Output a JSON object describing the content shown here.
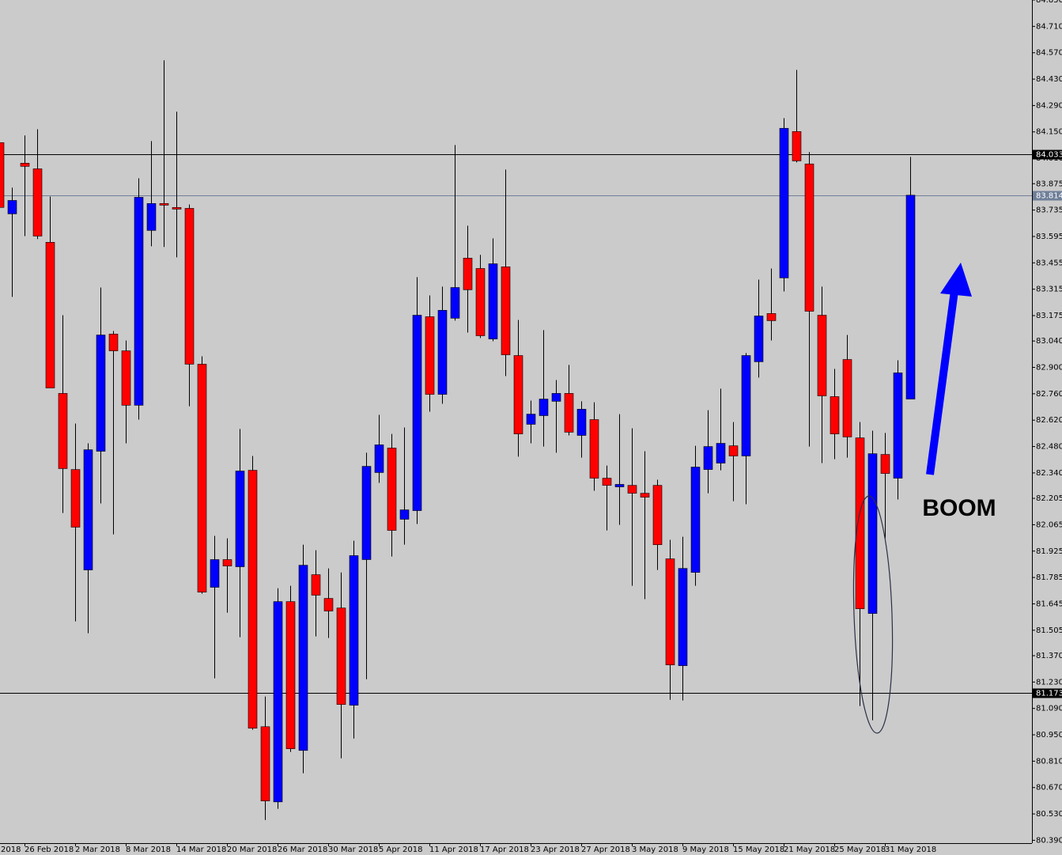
{
  "chart_data": {
    "type": "candlestick",
    "up_color": "#0000ff",
    "down_color": "#ff0000",
    "wick_color": "#000000",
    "ylim": [
      80.375,
      84.85
    ],
    "yticks": [
      {
        "value": 84.85,
        "label": "84.850"
      },
      {
        "value": 84.71,
        "label": "84.710"
      },
      {
        "value": 84.57,
        "label": "84.570"
      },
      {
        "value": 84.43,
        "label": "84.430"
      },
      {
        "value": 84.29,
        "label": "84.290"
      },
      {
        "value": 84.15,
        "label": "84.150"
      },
      {
        "value": 84.01,
        "label": "84.010"
      },
      83.875,
      83.735,
      83.595,
      83.455,
      83.315,
      83.175,
      {
        "value": 83.04,
        "label": "83.040"
      },
      {
        "value": 82.9,
        "label": "82.900"
      },
      {
        "value": 82.76,
        "label": "82.760"
      },
      {
        "value": 82.62,
        "label": "82.620"
      },
      {
        "value": 82.48,
        "label": "82.480"
      },
      {
        "value": 82.34,
        "label": "82.340"
      },
      82.205,
      82.065,
      81.925,
      81.785,
      81.645,
      81.505,
      {
        "value": 81.37,
        "label": "81.370"
      },
      {
        "value": 81.23,
        "label": "81.230"
      },
      {
        "value": 81.09,
        "label": "81.090"
      },
      {
        "value": 80.95,
        "label": "80.950"
      },
      {
        "value": 80.81,
        "label": "80.810"
      },
      {
        "value": 80.67,
        "label": "80.670"
      },
      {
        "value": 80.53,
        "label": "80.530"
      },
      {
        "value": 80.39,
        "label": "80.390"
      }
    ],
    "hlines": [
      {
        "value": 84.033,
        "color": "#000000"
      },
      {
        "value": 83.814,
        "color": "#6f7f99"
      },
      {
        "value": 81.173,
        "color": "#000000"
      }
    ],
    "annotation": "BOOM",
    "categories": [
      "2018",
      null,
      "26 Feb 2018",
      null,
      null,
      null,
      "2 Mar 2018",
      null,
      null,
      null,
      "8 Mar 2018",
      null,
      null,
      null,
      "14 Mar 2018",
      null,
      null,
      null,
      "20 Mar 2018",
      null,
      null,
      null,
      "26 Mar 2018",
      null,
      null,
      null,
      "30 Mar 2018",
      null,
      null,
      null,
      "5 Apr 2018",
      null,
      null,
      null,
      "11 Apr 2018",
      null,
      null,
      null,
      "17 Apr 2018",
      null,
      null,
      null,
      "23 Apr 2018",
      null,
      null,
      null,
      "27 Apr 2018",
      null,
      null,
      null,
      "3 May 2018",
      null,
      null,
      null,
      "9 May 2018",
      null,
      null,
      null,
      "15 May 2018",
      null,
      null,
      null,
      "21 May 2018",
      null,
      null,
      null,
      "25 May 2018",
      null,
      null,
      null,
      "31 May 2018",
      null,
      null
    ],
    "open": [
      84.093,
      83.715,
      83.984,
      83.954,
      83.564,
      82.762,
      82.358,
      81.825,
      82.455,
      83.077,
      82.988,
      82.699,
      83.627,
      83.77,
      83.749,
      83.744,
      82.917,
      81.733,
      81.88,
      81.842,
      82.354,
      80.993,
      80.594,
      81.657,
      80.867,
      81.8,
      81.674,
      81.623,
      81.107,
      81.88,
      82.342,
      82.472,
      82.094,
      82.14,
      83.169,
      82.757,
      83.161,
      83.48,
      83.425,
      83.051,
      83.434,
      82.963,
      82.598,
      82.644,
      82.72,
      82.762,
      82.539,
      82.623,
      82.312,
      82.266,
      82.274,
      82.232,
      82.274,
      81.884,
      81.317,
      81.812,
      82.358,
      82.392,
      82.484,
      82.43,
      82.93,
      83.186,
      83.375,
      84.152,
      83.98,
      83.177,
      82.745,
      82.942,
      82.526,
      81.594,
      82.438,
      82.312,
      82.732
    ],
    "high": [
      84.093,
      83.854,
      84.131,
      84.164,
      83.807,
      83.177,
      82.602,
      82.497,
      83.324,
      83.093,
      83.043,
      83.904,
      84.101,
      84.53,
      84.257,
      83.765,
      82.959,
      82.006,
      81.993,
      82.573,
      82.43,
      81.153,
      81.728,
      81.741,
      81.959,
      81.93,
      81.833,
      81.812,
      81.98,
      82.447,
      82.648,
      82.547,
      82.581,
      83.379,
      83.282,
      83.329,
      84.08,
      83.652,
      83.497,
      83.585,
      83.95,
      83.152,
      82.724,
      83.098,
      82.833,
      82.913,
      82.72,
      82.715,
      82.379,
      82.652,
      82.577,
      82.455,
      82.304,
      81.985,
      82.001,
      82.484,
      82.673,
      82.787,
      82.61,
      82.976,
      83.366,
      83.425,
      84.223,
      84.479,
      84.043,
      83.329,
      82.892,
      83.072,
      82.61,
      82.564,
      82.552,
      82.938,
      84.017
    ],
    "low": [
      83.749,
      83.274,
      83.597,
      83.581,
      82.791,
      82.127,
      81.552,
      81.489,
      82.178,
      82.014,
      82.497,
      82.623,
      83.543,
      83.539,
      83.484,
      82.694,
      81.699,
      81.25,
      81.598,
      81.468,
      80.977,
      80.498,
      80.557,
      80.859,
      80.746,
      81.472,
      81.464,
      80.825,
      80.93,
      81.245,
      82.287,
      81.896,
      81.959,
      82.069,
      82.665,
      82.707,
      83.148,
      83.085,
      83.056,
      83.039,
      82.854,
      82.426,
      82.497,
      82.48,
      82.447,
      82.539,
      82.421,
      82.245,
      82.035,
      82.064,
      81.741,
      81.67,
      81.825,
      81.136,
      81.132,
      81.741,
      82.232,
      82.354,
      82.19,
      82.174,
      82.846,
      83.043,
      83.303,
      83.988,
      82.48,
      82.392,
      82.413,
      82.421,
      81.103,
      81.027,
      81.993,
      82.199,
      82.732
    ],
    "close": [
      83.749,
      83.786,
      83.967,
      83.597,
      82.791,
      82.363,
      82.052,
      82.463,
      83.072,
      82.988,
      82.699,
      83.803,
      83.77,
      83.761,
      83.74,
      82.917,
      81.707,
      81.88,
      81.846,
      82.35,
      80.985,
      80.599,
      81.657,
      80.876,
      81.85,
      81.691,
      81.607,
      81.111,
      81.901,
      82.375,
      82.489,
      82.035,
      82.144,
      83.177,
      82.757,
      83.203,
      83.324,
      83.312,
      83.068,
      83.45,
      82.967,
      82.547,
      82.652,
      82.732,
      82.762,
      82.556,
      82.678,
      82.312,
      82.274,
      82.279,
      82.232,
      82.211,
      81.959,
      81.321,
      81.833,
      82.371,
      82.48,
      82.497,
      82.43,
      82.963,
      83.173,
      83.148,
      84.169,
      83.996,
      83.198,
      82.749,
      82.547,
      82.531,
      81.619,
      82.442,
      82.337,
      82.871,
      83.814
    ]
  }
}
